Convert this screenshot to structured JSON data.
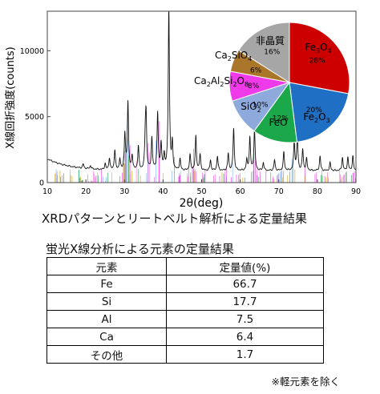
{
  "chart_data": [
    {
      "type": "line",
      "title": "",
      "xlabel": "2θ(deg)",
      "ylabel": "X線回折強度(counts)",
      "xlim": [
        10,
        90
      ],
      "ylim": [
        0,
        13000
      ],
      "x_ticks": [
        10,
        20,
        30,
        40,
        50,
        60,
        70,
        80,
        90
      ],
      "y_ticks": [
        0,
        5000,
        10000
      ],
      "series": [
        {
          "color": "#000000",
          "baseline": 900,
          "peaks": [
            [
              19.3,
              320
            ],
            [
              21.2,
              250
            ],
            [
              25.0,
              450
            ],
            [
              26.1,
              900
            ],
            [
              27.5,
              1500
            ],
            [
              28.8,
              800
            ],
            [
              30.1,
              2700
            ],
            [
              30.9,
              5150
            ],
            [
              32.0,
              1100
            ],
            [
              33.6,
              1800
            ],
            [
              35.4,
              2200
            ],
            [
              35.6,
              3800
            ],
            [
              37.1,
              2400
            ],
            [
              38.6,
              4300
            ],
            [
              39.5,
              2000
            ],
            [
              40.3,
              1100
            ],
            [
              41.5,
              12400
            ],
            [
              42.4,
              2000
            ],
            [
              44.4,
              850
            ],
            [
              47.0,
              1200
            ],
            [
              48.5,
              2600
            ],
            [
              49.6,
              1200
            ],
            [
              52.3,
              800
            ],
            [
              54.1,
              1100
            ],
            [
              56.9,
              1300
            ],
            [
              58.3,
              3200
            ],
            [
              61.7,
              800
            ],
            [
              62.5,
              2500
            ],
            [
              63.7,
              3100
            ],
            [
              66.0,
              600
            ],
            [
              68.9,
              800
            ],
            [
              71.3,
              1400
            ],
            [
              74.0,
              2200
            ],
            [
              74.8,
              2700
            ],
            [
              76.2,
              1600
            ],
            [
              77.2,
              900
            ],
            [
              80.7,
              1100
            ],
            [
              83.3,
              600
            ],
            [
              86.5,
              1000
            ],
            [
              87.9,
              1000
            ],
            [
              89.2,
              1100
            ]
          ]
        }
      ],
      "inset_pie": {
        "type": "pie",
        "slices": [
          {
            "label": "Fe3O4",
            "label_main": "Fe",
            "label_sub": "3",
            "label_main2": "O",
            "label_sub2": "4",
            "value": 28,
            "value_label": "28%",
            "color": "#cc0000"
          },
          {
            "label": "Fe2O3",
            "label_main": "Fe",
            "label_sub": "2",
            "label_main2": "O",
            "label_sub2": "3",
            "value": 20,
            "value_label": "20%",
            "color": "#1f6fc5"
          },
          {
            "label": "FeO",
            "label_main": "FeO",
            "label_sub": "",
            "label_main2": "",
            "label_sub2": "",
            "value": 12,
            "value_label": "12%",
            "color": "#1aa84a"
          },
          {
            "label": "SiO2",
            "label_main": "SiO",
            "label_sub": "2",
            "label_main2": "",
            "label_sub2": "",
            "value": 10,
            "value_label": "10%",
            "color": "#8ea9db"
          },
          {
            "label": "Ca2Al2Si2O8",
            "label_main": "Ca",
            "label_sub": "2",
            "label_main2": "Al",
            "label_sub2": "2",
            "label_main3": "Si",
            "label_sub3": "2",
            "label_main4": "O",
            "label_sub4": "8",
            "value": 8,
            "value_label": "8%",
            "color": "#ee3ae8"
          },
          {
            "label": "Ca2SiO4",
            "label_main": "Ca",
            "label_sub": "2",
            "label_main2": "SiO",
            "label_sub2": "4",
            "value": 6,
            "value_label": "6%",
            "color": "#a9762a"
          },
          {
            "label": "非晶質",
            "label_main": "非晶質",
            "label_sub": "",
            "label_main2": "",
            "label_sub2": "",
            "value": 16,
            "value_label": "16%",
            "color": "#a6a6a6"
          }
        ]
      }
    },
    {
      "type": "table",
      "title": "蛍光X線分析による元素の定量結果",
      "columns": [
        "元素",
        "定量値(%)"
      ],
      "rows": [
        [
          "Fe",
          "66.7"
        ],
        [
          "Si",
          "17.7"
        ],
        [
          "Al",
          "7.5"
        ],
        [
          "Ca",
          "6.4"
        ],
        [
          "その他",
          "1.7"
        ]
      ]
    }
  ],
  "captions": {
    "xrd": "XRDパターンとリートベルト解析による定量結果",
    "xrf": "蛍光X線分析による元素の定量結果",
    "note": "※軽元素を除く"
  }
}
